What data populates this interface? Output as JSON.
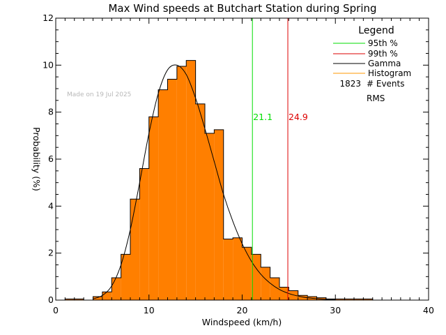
{
  "chart_data": {
    "type": "bar",
    "title": "Max Wind speeds at Butchart Station during Spring",
    "xlabel": "Windspeed (km/h)",
    "ylabel": "Probability (%)",
    "xlim": [
      0,
      40
    ],
    "ylim": [
      0,
      12
    ],
    "xticks": [
      "0",
      "10",
      "20",
      "30",
      "40"
    ],
    "yticks": [
      "0",
      "2",
      "4",
      "6",
      "8",
      "10",
      "12"
    ],
    "grid": false,
    "bin_width": 1,
    "histogram": {
      "bin_starts": [
        1,
        2,
        3,
        4,
        5,
        6,
        7,
        8,
        9,
        10,
        11,
        12,
        13,
        14,
        15,
        16,
        17,
        18,
        19,
        20,
        21,
        22,
        23,
        24,
        25,
        26,
        27,
        28,
        29,
        30,
        31,
        32,
        33
      ],
      "values": [
        0.05,
        0.05,
        0.0,
        0.15,
        0.35,
        0.95,
        1.95,
        4.3,
        5.6,
        7.8,
        8.95,
        9.4,
        9.95,
        10.2,
        8.35,
        7.1,
        7.25,
        2.6,
        2.65,
        2.25,
        1.95,
        1.4,
        0.95,
        0.55,
        0.4,
        0.2,
        0.15,
        0.1,
        0.05,
        0.05,
        0.05,
        0.05,
        0.05
      ],
      "color": "#ff7f00"
    },
    "gamma_curve": {
      "x": [
        4,
        5,
        6,
        7,
        8,
        9,
        10,
        11,
        12,
        13,
        14,
        15,
        16,
        17,
        18,
        19,
        20,
        21,
        22,
        23,
        24,
        25,
        26,
        27,
        28,
        29,
        30
      ],
      "y": [
        0.05,
        0.2,
        0.6,
        1.5,
        3.0,
        5.0,
        7.1,
        8.8,
        9.8,
        10.0,
        9.6,
        8.6,
        7.3,
        5.9,
        4.5,
        3.35,
        2.4,
        1.65,
        1.1,
        0.72,
        0.45,
        0.28,
        0.17,
        0.1,
        0.06,
        0.03,
        0.02
      ],
      "color": "#000000"
    },
    "percentile_lines": [
      {
        "label": "21.1",
        "x": 21.1,
        "color": "#00dd00"
      },
      {
        "label": "24.9",
        "x": 24.9,
        "color": "#dd0000"
      }
    ],
    "legend": {
      "title": "Legend",
      "placement": "top-right",
      "items": [
        {
          "swatch_color": "#00dd00",
          "text": "95th %"
        },
        {
          "swatch_color": "#dd0000",
          "text": "99th %"
        },
        {
          "swatch_color": "#000000",
          "text": "Gamma"
        },
        {
          "swatch_color": "#ff9900",
          "text": "Histogram"
        }
      ],
      "events_count": "1823",
      "events_label": "# Events",
      "rms_label": "RMS"
    },
    "annotation": "Made on 19 Jul 2025"
  }
}
